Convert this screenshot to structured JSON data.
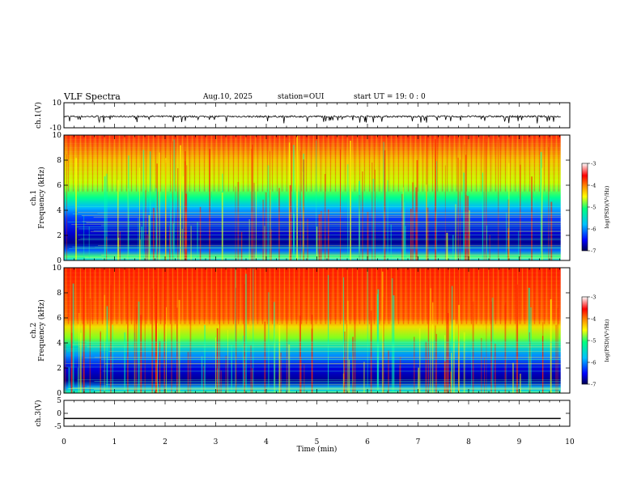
{
  "header": {
    "title": "VLF Spectra",
    "date": "Aug.10, 2025",
    "station": "station=OUI",
    "start": "start  UT =   19: 0  : 0"
  },
  "chart_data": [
    {
      "type": "line",
      "ylabel": "ch.1(V)",
      "ylim": [
        -10,
        10
      ],
      "yticks": [
        10,
        -10
      ],
      "xlim": [
        0,
        10
      ],
      "series": [
        {
          "description": "noisy trace around -1 V with downward spikes to about -6 V",
          "baseline": -1
        }
      ]
    },
    {
      "type": "heatmap",
      "ylabel_line1": "ch.1",
      "ylabel_line2": "Frequency (kHz)",
      "ylim": [
        0,
        10
      ],
      "yticks": [
        0,
        2,
        4,
        6,
        8,
        10
      ],
      "xlim": [
        0,
        10
      ],
      "colorbar": {
        "label": "log(PSD)(V²/Hz)",
        "ticks": [
          -3,
          -4,
          -5,
          -6,
          -7
        ],
        "range": [
          -7,
          -3
        ],
        "colors": [
          "#000080",
          "#0000ff",
          "#00c0ff",
          "#00ff80",
          "#ffff00",
          "#ff8000",
          "#ff0000",
          "#ffffff"
        ]
      },
      "description": "high power (red/yellow) above ~4 kHz, low power (blue) band between 0.5 and 3.5 kHz"
    },
    {
      "type": "heatmap",
      "ylabel_line1": "ch.2",
      "ylabel_line2": "Frequency (kHz)",
      "ylim": [
        0,
        10
      ],
      "yticks": [
        0,
        2,
        4,
        6,
        8,
        10
      ],
      "xlim": [
        0,
        10
      ],
      "colorbar": {
        "label": "log(PSD)(V²/Hz)",
        "ticks": [
          -3,
          -4,
          -5,
          -6,
          -7
        ],
        "range": [
          -7,
          -3
        ],
        "colors": [
          "#000080",
          "#0000ff",
          "#00c0ff",
          "#00ff80",
          "#ffff00",
          "#ff8000",
          "#ff0000",
          "#ffffff"
        ]
      },
      "description": "high power (red) above ~5 kHz, blue band between 0.5 and 4 kHz"
    },
    {
      "type": "line",
      "ylabel": "ch.3(V)",
      "ylim": [
        -5,
        5
      ],
      "yticks": [
        5,
        0,
        -5
      ],
      "xlim": [
        0,
        10
      ],
      "xlabel": "Time (min)",
      "xticks": [
        0,
        1,
        2,
        3,
        4,
        5,
        6,
        7,
        8,
        9,
        10
      ],
      "series": [
        {
          "description": "flat line",
          "values_constant": -2
        }
      ]
    }
  ]
}
